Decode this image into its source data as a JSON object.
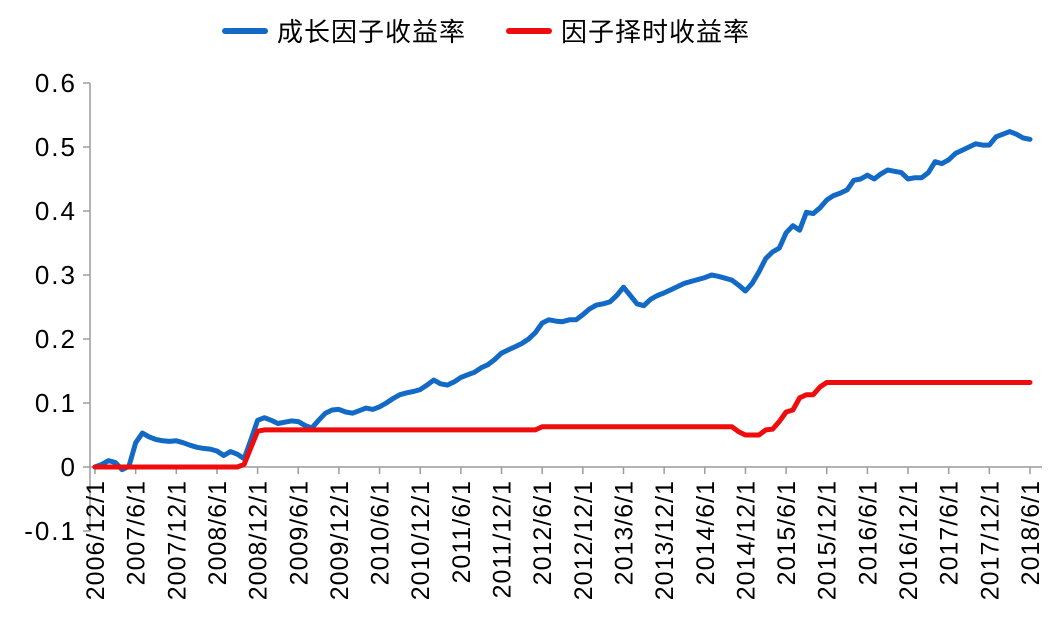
{
  "page": {
    "background": "#ffffff"
  },
  "chart_data": {
    "type": "line",
    "title": "",
    "xlabel": "",
    "ylabel": "",
    "grid": false,
    "legend_position": "top",
    "axis_color": "#9c9c9c",
    "text_color": "#000000",
    "ylim": [
      -0.1,
      0.6
    ],
    "y_ticks": [
      "0.6",
      "0.5",
      "0.4",
      "0.3",
      "0.2",
      "0.1",
      "0",
      "-0.1"
    ],
    "x_start": "2006/12/1",
    "x_end": "2018/6/1",
    "n_points": 139,
    "label_every": 6,
    "x_tick_labels": [
      "2006/12/1",
      "2007/6/1",
      "2007/12/1",
      "2008/6/1",
      "2008/12/1",
      "2009/6/1",
      "2009/12/1",
      "2010/6/1",
      "2010/12/1",
      "2011/6/1",
      "2011/12/1",
      "2012/6/1",
      "2012/12/1",
      "2013/6/1",
      "2013/12/1",
      "2014/6/1",
      "2014/12/1",
      "2015/6/1",
      "2015/12/1",
      "2016/6/1",
      "2016/12/1",
      "2017/6/1",
      "2017/12/1",
      "2018/6/1"
    ],
    "series": [
      {
        "name": "成长因子收益率",
        "color": "#1269c6",
        "line_width": 5,
        "values": [
          0.0,
          0.004,
          0.01,
          0.007,
          -0.004,
          0.001,
          0.038,
          0.053,
          0.047,
          0.043,
          0.041,
          0.04,
          0.041,
          0.038,
          0.034,
          0.031,
          0.029,
          0.028,
          0.025,
          0.018,
          0.024,
          0.02,
          0.013,
          0.042,
          0.073,
          0.077,
          0.073,
          0.068,
          0.07,
          0.072,
          0.071,
          0.065,
          0.061,
          0.073,
          0.084,
          0.089,
          0.09,
          0.086,
          0.084,
          0.088,
          0.092,
          0.09,
          0.094,
          0.1,
          0.107,
          0.113,
          0.116,
          0.118,
          0.121,
          0.128,
          0.136,
          0.13,
          0.128,
          0.133,
          0.14,
          0.144,
          0.148,
          0.155,
          0.16,
          0.168,
          0.178,
          0.183,
          0.188,
          0.193,
          0.2,
          0.21,
          0.225,
          0.23,
          0.228,
          0.227,
          0.23,
          0.23,
          0.238,
          0.247,
          0.253,
          0.255,
          0.258,
          0.268,
          0.281,
          0.268,
          0.255,
          0.252,
          0.262,
          0.268,
          0.272,
          0.277,
          0.282,
          0.287,
          0.29,
          0.293,
          0.296,
          0.3,
          0.298,
          0.295,
          0.292,
          0.284,
          0.275,
          0.287,
          0.305,
          0.326,
          0.336,
          0.342,
          0.366,
          0.377,
          0.37,
          0.398,
          0.396,
          0.405,
          0.417,
          0.424,
          0.428,
          0.433,
          0.448,
          0.45,
          0.456,
          0.45,
          0.458,
          0.464,
          0.462,
          0.46,
          0.45,
          0.452,
          0.452,
          0.46,
          0.477,
          0.474,
          0.48,
          0.49,
          0.495,
          0.5,
          0.505,
          0.503,
          0.503,
          0.516,
          0.52,
          0.524,
          0.52,
          0.514,
          0.512
        ]
      },
      {
        "name": "因子择时收益率",
        "color": "#ee0c0c",
        "line_width": 5,
        "values": [
          0.0,
          0.0,
          0.0,
          0.0,
          0.0,
          0.0,
          0.0,
          0.0,
          0.0,
          0.0,
          0.0,
          0.0,
          0.0,
          0.0,
          0.0,
          0.0,
          0.0,
          0.0,
          0.0,
          0.0,
          0.0,
          0.0,
          0.004,
          0.03,
          0.056,
          0.058,
          0.058,
          0.058,
          0.058,
          0.058,
          0.058,
          0.058,
          0.058,
          0.058,
          0.058,
          0.058,
          0.058,
          0.058,
          0.058,
          0.058,
          0.058,
          0.058,
          0.058,
          0.058,
          0.058,
          0.058,
          0.058,
          0.058,
          0.058,
          0.058,
          0.058,
          0.058,
          0.058,
          0.058,
          0.058,
          0.058,
          0.058,
          0.058,
          0.058,
          0.058,
          0.058,
          0.058,
          0.058,
          0.058,
          0.058,
          0.058,
          0.063,
          0.063,
          0.063,
          0.063,
          0.063,
          0.063,
          0.063,
          0.063,
          0.063,
          0.063,
          0.063,
          0.063,
          0.063,
          0.063,
          0.063,
          0.063,
          0.063,
          0.063,
          0.063,
          0.063,
          0.063,
          0.063,
          0.063,
          0.063,
          0.063,
          0.063,
          0.063,
          0.063,
          0.063,
          0.055,
          0.05,
          0.05,
          0.05,
          0.058,
          0.059,
          0.071,
          0.086,
          0.089,
          0.108,
          0.113,
          0.113,
          0.125,
          0.132,
          0.132,
          0.132,
          0.132,
          0.132,
          0.132,
          0.132,
          0.132,
          0.132,
          0.132,
          0.132,
          0.132,
          0.132,
          0.132,
          0.132,
          0.132,
          0.132,
          0.132,
          0.132,
          0.132,
          0.132,
          0.132,
          0.132,
          0.132,
          0.132,
          0.132,
          0.132,
          0.132,
          0.132,
          0.132,
          0.132
        ]
      }
    ]
  }
}
